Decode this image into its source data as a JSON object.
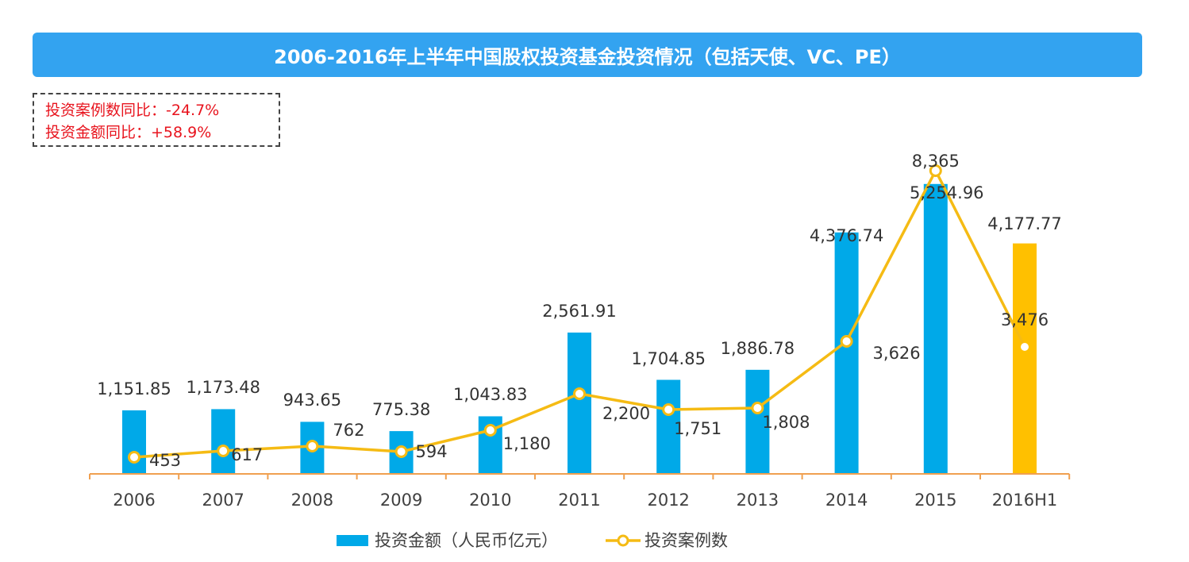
{
  "header": {
    "title": "2006-2016年上半年中国股权投资基金投资情况（包括天使、VC、PE）"
  },
  "notes": {
    "cases_yoy": "投资案例数同比：-24.7%",
    "amount_yoy": "投资金额同比：+58.9%"
  },
  "colors": {
    "bar": "#00a9e8",
    "bar_highlight": "#ffc000",
    "line": "#f5bb14",
    "axis": "#f0a050",
    "title_bg": "#33a3f0",
    "note_text": "#e8141e"
  },
  "chart_data": {
    "type": "bar",
    "title": "2006-2016年上半年中国股权投资基金投资情况（包括天使、VC、PE）",
    "categories": [
      "2006",
      "2007",
      "2008",
      "2009",
      "2010",
      "2011",
      "2012",
      "2013",
      "2014",
      "2015",
      "2016H1"
    ],
    "series": [
      {
        "name": "投资金额（人民币亿元）",
        "type": "bar",
        "values": [
          1151.85,
          1173.48,
          943.65,
          775.38,
          1043.83,
          2561.91,
          1704.85,
          1886.78,
          4376.74,
          5254.96,
          4177.77
        ],
        "labels": [
          "1,151.85",
          "1,173.48",
          "943.65",
          "775.38",
          "1,043.83",
          "2,561.91",
          "1,704.85",
          "1,886.78",
          "4,376.74",
          "5,254.96",
          "4,177.77"
        ]
      },
      {
        "name": "投资案例数",
        "type": "line",
        "values": [
          453,
          617,
          762,
          594,
          1180,
          2200,
          1751,
          1808,
          3626,
          8365,
          3476
        ],
        "labels": [
          "453",
          "617",
          "762",
          "594",
          "1,180",
          "2,200",
          "1,751",
          "1,808",
          "3,626",
          "8,365",
          "3,476"
        ]
      }
    ],
    "highlight_category": "2016H1",
    "legend_position": "bottom-center",
    "grid": false
  }
}
